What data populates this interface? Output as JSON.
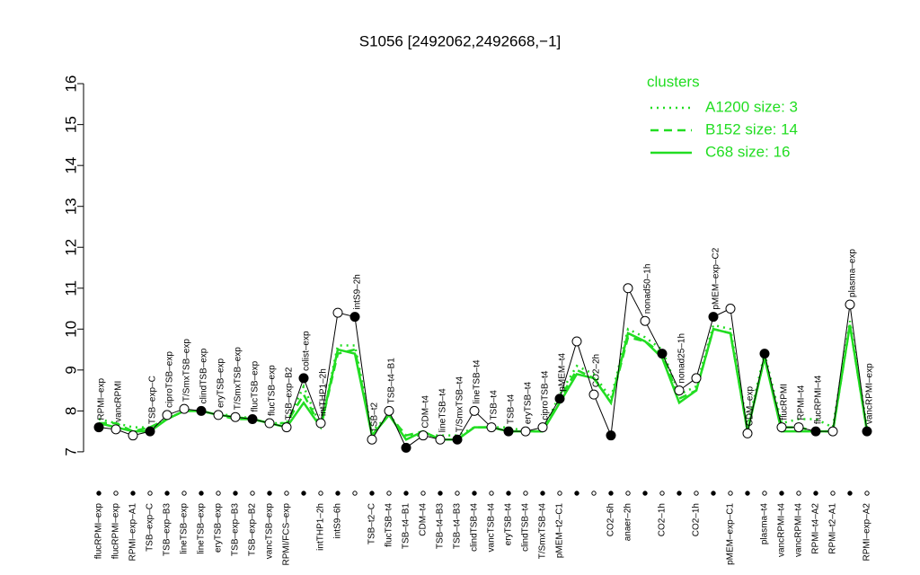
{
  "chart_data": {
    "type": "line",
    "title": "S1056 [2492062,2492668,−1]",
    "categories": [
      "flucRPMI–exp",
      "flucRPMI–exp",
      "RPMI–exp–A1",
      "TSB–exp–C",
      "TSB–exp–B3",
      "lineTSB–exp",
      "lineTSB–exp",
      "eryTSB–exp",
      "TSB–exp–B3",
      "TSB–exp–B2",
      "vancTSB–exp",
      "RPMI/FCS–exp",
      null,
      "intTHP1–2h",
      "intS9–6h",
      null,
      "TSB–t2–C",
      "flucTSB–t4",
      "TSB–t4–B1",
      "CDM–t4",
      "TSB–t4–B3",
      "TSB–t4–B3",
      "clindTSB–t4",
      "vancTSB–t4",
      "eryTSB–t4",
      "clindTSB–t4",
      "T/SmxTSB–t4",
      "pMEM–t2–C1",
      null,
      null,
      "CO2–6h",
      "anaer–2h",
      null,
      "CO2–1h",
      null,
      "CO2–1h",
      null,
      "pMEM–exp–C1",
      null,
      "plasma–t4",
      "vancRPMI–t4",
      "vancRPMI–t4",
      "RPMI–t4–A2",
      "RPMI–t2–A1",
      null,
      "RPMI–exp–A2"
    ],
    "point_labels": [
      "RPMI–exp",
      "vancRPMI",
      null,
      "TSB–exp–C",
      "ciproTSB–exp",
      "T/SmxTSB–exp",
      "clindTSB–exp",
      "eryTSB–exp",
      "T/SmxTSB–exp",
      "flucTSB–exp",
      "flucTSB–exp",
      "TSB–exp–B2",
      "colist–exp",
      "intTHP1–2h",
      null,
      "intS9–2h",
      "TSB–t2",
      "TSB–t4–B1",
      null,
      "CDM–t4",
      "lineTSB–t4",
      "T/SmxTSB–t4",
      "lineTSB–t4",
      "TSB–t4",
      "TSB–t4",
      "eryTSB–t4",
      "ciproTSB–t4",
      "pMEM–t4",
      null,
      "CO2–2h",
      null,
      null,
      "nonad50–1h",
      null,
      "nonad25–1h",
      null,
      "pMEM–exp–C2",
      null,
      "CDM–exp",
      null,
      "flucRPMI",
      "RPMI–t4",
      "flucRPMI–t4",
      null,
      "plasma–exp",
      "vancRPMI–exp"
    ],
    "values": [
      7.6,
      7.55,
      7.4,
      7.5,
      7.9,
      8.05,
      8.0,
      7.9,
      7.85,
      7.8,
      7.7,
      7.6,
      8.8,
      7.7,
      10.4,
      10.3,
      7.3,
      8.0,
      7.1,
      7.4,
      7.3,
      7.3,
      8.0,
      7.6,
      7.5,
      7.5,
      7.6,
      8.3,
      9.7,
      8.4,
      7.4,
      11.0,
      10.2,
      9.4,
      8.5,
      8.8,
      10.3,
      10.5,
      7.45,
      9.4,
      7.6,
      7.6,
      7.5,
      7.5,
      10.6,
      7.5
    ],
    "series": [
      {
        "name": "A1200 size: 3",
        "color": "#22dd22",
        "style": "dotted",
        "values": [
          7.8,
          7.7,
          7.6,
          7.6,
          7.8,
          8.0,
          8.0,
          7.9,
          7.9,
          7.8,
          7.7,
          7.7,
          8.6,
          7.6,
          9.6,
          9.6,
          7.5,
          7.9,
          7.4,
          7.4,
          7.4,
          7.4,
          7.6,
          7.6,
          7.6,
          7.5,
          7.5,
          8.4,
          9.1,
          8.9,
          8.3,
          10.0,
          9.8,
          9.5,
          8.4,
          8.6,
          10.1,
          10.0,
          7.6,
          9.4,
          7.7,
          7.8,
          7.8,
          7.6,
          10.2,
          7.6
        ]
      },
      {
        "name": "B152 size: 14",
        "color": "#22dd22",
        "style": "dashed",
        "values": [
          7.7,
          7.7,
          7.5,
          7.6,
          7.8,
          8.0,
          8.0,
          7.9,
          7.8,
          7.8,
          7.7,
          7.7,
          8.4,
          7.6,
          9.4,
          9.5,
          7.4,
          7.9,
          7.4,
          7.5,
          7.3,
          7.3,
          7.6,
          7.6,
          7.5,
          7.5,
          7.5,
          8.3,
          9.0,
          8.8,
          8.2,
          9.8,
          9.7,
          9.4,
          8.3,
          8.5,
          10.0,
          9.9,
          7.5,
          9.3,
          7.6,
          7.6,
          7.5,
          7.5,
          10.1,
          7.5
        ]
      },
      {
        "name": "C68 size: 16",
        "color": "#22dd22",
        "style": "solid",
        "values": [
          7.7,
          7.6,
          7.5,
          7.5,
          7.8,
          8.0,
          8.0,
          7.9,
          7.85,
          7.8,
          7.7,
          7.6,
          8.2,
          7.6,
          9.5,
          9.4,
          7.4,
          7.9,
          7.3,
          7.5,
          7.3,
          7.3,
          7.6,
          7.6,
          7.5,
          7.5,
          7.5,
          8.2,
          8.9,
          8.8,
          8.2,
          9.9,
          9.7,
          9.3,
          8.2,
          8.5,
          10.0,
          9.9,
          7.5,
          9.3,
          7.5,
          7.5,
          7.5,
          7.5,
          10.1,
          7.5
        ]
      }
    ],
    "legend_title": "clusters",
    "ylim": [
      6.8,
      16.2
    ],
    "yticks": [
      7,
      8,
      9,
      10,
      11,
      12,
      13,
      14,
      15,
      16
    ]
  }
}
